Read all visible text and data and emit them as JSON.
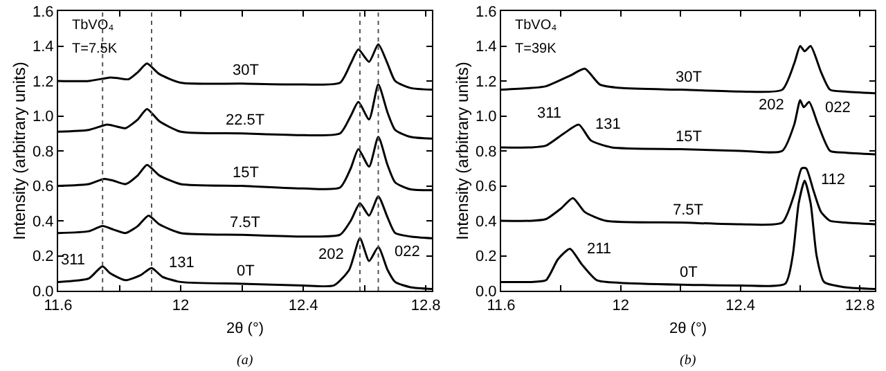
{
  "chart_data": [
    {
      "type": "line",
      "xlabel": "2θ (°)",
      "ylabel": "Intensity (arbitrary units)",
      "xlim": [
        11.6,
        12.82
      ],
      "ylim": [
        0,
        1.6
      ],
      "xticks": [
        11.6,
        {
          "value": 11.8,
          "label": null
        },
        12.0,
        {
          "value": 12.2,
          "label": null
        },
        12.4,
        {
          "value": 12.6,
          "label": null
        },
        12.8
      ],
      "yticks": [
        "0.0",
        0.2,
        0.4,
        0.6,
        0.8,
        "1.0",
        1.2,
        1.4,
        1.6
      ],
      "line_style": "solid",
      "color": "#000000",
      "series": [
        {
          "name": "0T",
          "x": [
            11.6,
            11.7,
            11.725,
            11.745,
            11.77,
            11.82,
            11.87,
            11.905,
            11.94,
            12.0,
            12.2,
            12.4,
            12.5,
            12.55,
            12.585,
            12.615,
            12.645,
            12.675,
            12.7,
            12.75,
            12.82
          ],
          "values": [
            0.05,
            0.07,
            0.11,
            0.14,
            0.1,
            0.06,
            0.09,
            0.13,
            0.08,
            0.05,
            0.04,
            0.03,
            0.03,
            0.12,
            0.3,
            0.17,
            0.25,
            0.12,
            0.05,
            0.02,
            0.01
          ]
        },
        {
          "name": "7.5T",
          "x": [
            11.6,
            11.7,
            11.745,
            11.78,
            11.82,
            11.86,
            11.895,
            11.93,
            12.0,
            12.2,
            12.4,
            12.52,
            12.555,
            12.585,
            12.615,
            12.645,
            12.675,
            12.7,
            12.75,
            12.82
          ],
          "values": [
            0.33,
            0.34,
            0.37,
            0.35,
            0.33,
            0.37,
            0.43,
            0.38,
            0.33,
            0.32,
            0.31,
            0.32,
            0.4,
            0.5,
            0.43,
            0.54,
            0.42,
            0.33,
            0.31,
            0.3
          ]
        },
        {
          "name": "15T",
          "x": [
            11.6,
            11.7,
            11.75,
            11.78,
            11.82,
            11.86,
            11.89,
            11.93,
            12.0,
            12.2,
            12.4,
            12.52,
            12.555,
            12.58,
            12.615,
            12.645,
            12.675,
            12.7,
            12.75,
            12.82
          ],
          "values": [
            0.6,
            0.61,
            0.64,
            0.63,
            0.61,
            0.66,
            0.72,
            0.66,
            0.61,
            0.6,
            0.585,
            0.59,
            0.7,
            0.81,
            0.71,
            0.88,
            0.72,
            0.62,
            0.58,
            0.575
          ]
        },
        {
          "name": "22.5T",
          "x": [
            11.6,
            11.7,
            11.76,
            11.79,
            11.82,
            11.86,
            11.89,
            11.93,
            12.0,
            12.2,
            12.4,
            12.52,
            12.555,
            12.58,
            12.615,
            12.645,
            12.675,
            12.7,
            12.75,
            12.82
          ],
          "values": [
            0.91,
            0.92,
            0.95,
            0.94,
            0.93,
            0.98,
            1.04,
            0.97,
            0.91,
            0.9,
            0.89,
            0.9,
            1.0,
            1.08,
            0.98,
            1.18,
            1.02,
            0.92,
            0.88,
            0.87
          ]
        },
        {
          "name": "30T",
          "x": [
            11.6,
            11.7,
            11.77,
            11.8,
            11.83,
            11.86,
            11.89,
            11.93,
            12.0,
            12.2,
            12.4,
            12.52,
            12.555,
            12.58,
            12.615,
            12.645,
            12.675,
            12.7,
            12.75,
            12.82
          ],
          "values": [
            1.2,
            1.2,
            1.22,
            1.215,
            1.21,
            1.25,
            1.3,
            1.24,
            1.19,
            1.185,
            1.18,
            1.19,
            1.3,
            1.38,
            1.31,
            1.41,
            1.3,
            1.2,
            1.16,
            1.15
          ]
        }
      ],
      "ref_lines": [
        {
          "axis": "x",
          "value": 11.745,
          "line_style": "dotted"
        },
        {
          "axis": "x",
          "value": 11.905,
          "line_style": "dotted"
        },
        {
          "axis": "x",
          "value": 12.585,
          "line_style": "dotted"
        },
        {
          "axis": "x",
          "value": 12.645,
          "line_style": "dotted"
        }
      ],
      "annotations": [
        "TbVO₄",
        "T=7.5K",
        {
          "text": "311",
          "x": 11.745,
          "y": 0.14
        },
        {
          "text": "131",
          "x": 11.905,
          "y": 0.13
        },
        {
          "text": "202",
          "x": 12.585,
          "y": 0.3
        },
        {
          "text": "022",
          "x": 12.645,
          "y": 0.25
        },
        "(a)"
      ]
    },
    {
      "type": "line",
      "xlabel": "2θ (°)",
      "ylabel": "Intensity (arbitrary units)",
      "xlim": [
        11.6,
        12.85
      ],
      "ylim": [
        0,
        1.6
      ],
      "xticks": [
        11.6,
        {
          "value": 11.8,
          "label": null
        },
        12.0,
        {
          "value": 12.2,
          "label": null
        },
        12.4,
        {
          "value": 12.6,
          "label": null
        },
        12.8
      ],
      "yticks": [
        "0.0",
        0.2,
        0.4,
        0.6,
        0.8,
        "1.0",
        1.2,
        1.4,
        1.6
      ],
      "line_style": "solid",
      "color": "#000000",
      "series": [
        {
          "name": "0T",
          "x": [
            11.6,
            11.7,
            11.75,
            11.79,
            11.83,
            11.87,
            11.92,
            12.0,
            12.2,
            12.4,
            12.55,
            12.575,
            12.595,
            12.615,
            12.635,
            12.655,
            12.68,
            12.75,
            12.85
          ],
          "values": [
            0.05,
            0.05,
            0.06,
            0.18,
            0.24,
            0.15,
            0.06,
            0.045,
            0.035,
            0.03,
            0.04,
            0.2,
            0.5,
            0.63,
            0.5,
            0.2,
            0.05,
            0.02,
            0.01
          ]
        },
        {
          "name": "7.5T",
          "x": [
            11.6,
            11.7,
            11.75,
            11.8,
            11.84,
            11.88,
            11.95,
            12.2,
            12.4,
            12.54,
            12.58,
            12.605,
            12.62,
            12.645,
            12.67,
            12.7,
            12.75,
            12.85
          ],
          "values": [
            0.4,
            0.4,
            0.41,
            0.47,
            0.53,
            0.45,
            0.4,
            0.39,
            0.38,
            0.39,
            0.55,
            0.7,
            0.7,
            0.57,
            0.45,
            0.4,
            0.39,
            0.38
          ]
        },
        {
          "name": "15T",
          "x": [
            11.6,
            11.7,
            11.75,
            11.81,
            11.86,
            11.9,
            11.97,
            12.2,
            12.4,
            12.54,
            12.58,
            12.6,
            12.612,
            12.63,
            12.66,
            12.7,
            12.75,
            12.85
          ],
          "values": [
            0.82,
            0.82,
            0.83,
            0.9,
            0.95,
            0.86,
            0.82,
            0.81,
            0.8,
            0.8,
            0.95,
            1.09,
            1.05,
            1.08,
            0.95,
            0.8,
            0.79,
            0.78
          ]
        },
        {
          "name": "30T",
          "x": [
            11.6,
            11.7,
            11.75,
            11.83,
            11.88,
            11.93,
            12.0,
            12.2,
            12.4,
            12.54,
            12.58,
            12.6,
            12.615,
            12.635,
            12.67,
            12.7,
            12.75,
            12.85
          ],
          "values": [
            1.15,
            1.16,
            1.17,
            1.23,
            1.27,
            1.18,
            1.16,
            1.15,
            1.14,
            1.15,
            1.3,
            1.4,
            1.37,
            1.4,
            1.25,
            1.15,
            1.14,
            1.13
          ]
        }
      ],
      "annotations": [
        "TbVO₄",
        "T=39K",
        {
          "text": "311",
          "x": 11.86,
          "y": 0.95
        },
        {
          "text": "131",
          "x": 11.86,
          "y": 0.95
        },
        {
          "text": "202",
          "x": 12.6,
          "y": 1.09
        },
        {
          "text": "022",
          "x": 12.63,
          "y": 1.08
        },
        {
          "text": "211",
          "x": 11.83,
          "y": 0.24
        },
        {
          "text": "112",
          "x": 12.615,
          "y": 0.63
        },
        "(b)"
      ]
    }
  ]
}
